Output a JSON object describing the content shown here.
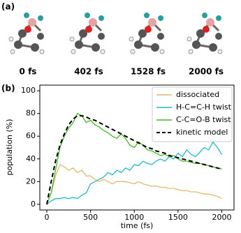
{
  "panel_a": {
    "label": "(a)",
    "snapshots": [
      "0 fs",
      "402 fs",
      "1528 fs",
      "2000 fs"
    ]
  },
  "chart_data": {
    "type": "line",
    "panel_label": "(b)",
    "x_label": "time (fs)",
    "y_label": "population (%)",
    "x": [
      0,
      50,
      100,
      150,
      200,
      250,
      300,
      350,
      400,
      450,
      500,
      550,
      600,
      650,
      700,
      750,
      800,
      850,
      900,
      950,
      1000,
      1050,
      1100,
      1150,
      1200,
      1250,
      1300,
      1350,
      1400,
      1450,
      1500,
      1550,
      1600,
      1650,
      1700,
      1750,
      1800,
      1850,
      1900,
      1950,
      2000
    ],
    "series": [
      {
        "name": "dissociated",
        "color": "#e3b96c",
        "style": "solid",
        "values": [
          0,
          10,
          25,
          35,
          33,
          30,
          32,
          28,
          30,
          25,
          25,
          22,
          20,
          22,
          20,
          18,
          20,
          20,
          20,
          19,
          18,
          20,
          18,
          17,
          16,
          16,
          15,
          15,
          14,
          14,
          13,
          12,
          12,
          11,
          11,
          10,
          9,
          9,
          8,
          7,
          5
        ]
      },
      {
        "name": "H-C=C-H twist",
        "color": "#1fb9c9",
        "style": "solid",
        "values": [
          0,
          3,
          5,
          5,
          6,
          5,
          6,
          5,
          8,
          10,
          18,
          20,
          22,
          24,
          28,
          26,
          30,
          28,
          32,
          30,
          35,
          34,
          38,
          36,
          35,
          38,
          40,
          38,
          42,
          40,
          45,
          42,
          48,
          44,
          42,
          46,
          50,
          48,
          55,
          50,
          44
        ]
      },
      {
        "name": "C-C=O-B twist",
        "color": "#43b824",
        "style": "solid",
        "values": [
          0,
          10,
          30,
          50,
          60,
          67,
          72,
          80,
          78,
          72,
          74,
          70,
          68,
          65,
          63,
          60,
          58,
          62,
          58,
          52,
          50,
          55,
          52,
          48,
          47,
          45,
          43,
          44,
          42,
          43,
          40,
          38,
          38,
          37,
          36,
          36,
          35,
          34,
          33,
          32,
          31
        ]
      },
      {
        "name": "kinetic model",
        "color": "#000000",
        "style": "dashed",
        "values": [
          0,
          20,
          38,
          52,
          62,
          70,
          75,
          78,
          78,
          77,
          75,
          74,
          72,
          70,
          68,
          66,
          64,
          62,
          60,
          58,
          56,
          54,
          52,
          50,
          49,
          47,
          46,
          45,
          43,
          42,
          41,
          40,
          39,
          38,
          37,
          36,
          35,
          34,
          33,
          32,
          31
        ]
      }
    ],
    "xlim": [
      -80,
      2140
    ],
    "ylim": [
      -5,
      105
    ],
    "xticks": [
      0,
      500,
      1000,
      1500,
      2000
    ],
    "yticks": [
      0,
      20,
      40,
      60,
      80,
      100
    ],
    "legend": "upper right"
  }
}
